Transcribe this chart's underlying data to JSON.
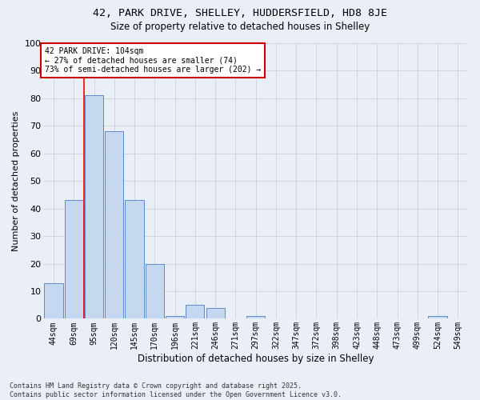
{
  "title_line1": "42, PARK DRIVE, SHELLEY, HUDDERSFIELD, HD8 8JE",
  "title_line2": "Size of property relative to detached houses in Shelley",
  "xlabel": "Distribution of detached houses by size in Shelley",
  "ylabel": "Number of detached properties",
  "categories": [
    "44sqm",
    "69sqm",
    "95sqm",
    "120sqm",
    "145sqm",
    "170sqm",
    "196sqm",
    "221sqm",
    "246sqm",
    "271sqm",
    "297sqm",
    "322sqm",
    "347sqm",
    "372sqm",
    "398sqm",
    "423sqm",
    "448sqm",
    "473sqm",
    "499sqm",
    "524sqm",
    "549sqm"
  ],
  "values": [
    13,
    43,
    81,
    68,
    43,
    20,
    1,
    5,
    4,
    0,
    1,
    0,
    0,
    0,
    0,
    0,
    0,
    0,
    0,
    1,
    0
  ],
  "bar_color": "#c5d8f0",
  "bar_edge_color": "#5b8cc8",
  "grid_color": "#c8d0dc",
  "background_color": "#eaeff7",
  "red_line_x": 1.5,
  "annotation_text": "42 PARK DRIVE: 104sqm\n← 27% of detached houses are smaller (74)\n73% of semi-detached houses are larger (202) →",
  "annotation_box_color": "#ffffff",
  "annotation_box_edge": "#cc0000",
  "footer_line1": "Contains HM Land Registry data © Crown copyright and database right 2025.",
  "footer_line2": "Contains public sector information licensed under the Open Government Licence v3.0.",
  "ylim": [
    0,
    100
  ],
  "yticks": [
    0,
    10,
    20,
    30,
    40,
    50,
    60,
    70,
    80,
    90,
    100
  ]
}
